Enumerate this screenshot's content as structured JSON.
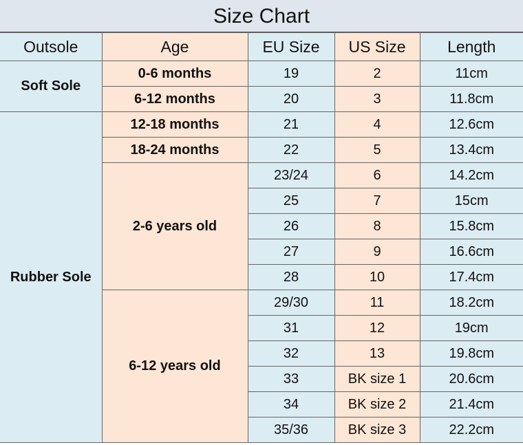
{
  "title": "Size Chart",
  "table": {
    "headers": [
      "Outsole",
      "Age",
      "EU Size",
      "US Size",
      "Length"
    ],
    "outsole": [
      "Soft Sole",
      "Rubber Sole"
    ],
    "ages": [
      "0-6 months",
      "6-12 months",
      "12-18 months",
      "18-24 months",
      "2-6 years old",
      "6-12 years old"
    ],
    "rows": [
      {
        "eu": "19",
        "us": "2",
        "length": "11cm"
      },
      {
        "eu": "20",
        "us": "3",
        "length": "11.8cm"
      },
      {
        "eu": "21",
        "us": "4",
        "length": "12.6cm"
      },
      {
        "eu": "22",
        "us": "5",
        "length": "13.4cm"
      },
      {
        "eu": "23/24",
        "us": "6",
        "length": "14.2cm"
      },
      {
        "eu": "25",
        "us": "7",
        "length": "15cm"
      },
      {
        "eu": "26",
        "us": "8",
        "length": "15.8cm"
      },
      {
        "eu": "27",
        "us": "9",
        "length": "16.6cm"
      },
      {
        "eu": "28",
        "us": "10",
        "length": "17.4cm"
      },
      {
        "eu": "29/30",
        "us": "11",
        "length": "18.2cm"
      },
      {
        "eu": "31",
        "us": "12",
        "length": "19cm"
      },
      {
        "eu": "32",
        "us": "13",
        "length": "19.8cm"
      },
      {
        "eu": "33",
        "us": "BK size 1",
        "length": "20.6cm"
      },
      {
        "eu": "34",
        "us": "BK size 2",
        "length": "21.4cm"
      },
      {
        "eu": "35/36",
        "us": "BK size 3",
        "length": "22.2cm"
      }
    ]
  }
}
